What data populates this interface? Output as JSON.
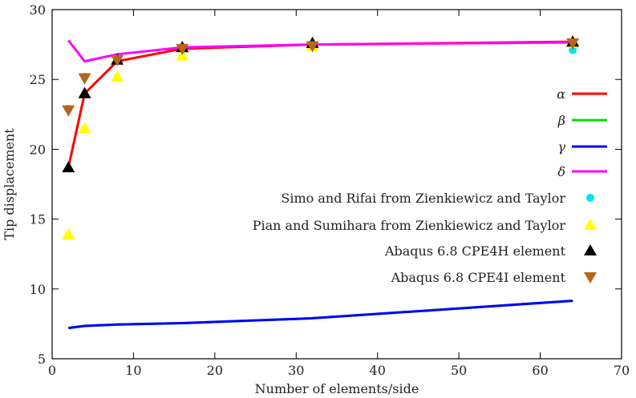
{
  "chart_data": {
    "type": "line",
    "xlabel": "Number of elements/side",
    "ylabel": "Tip displacement",
    "xlim": [
      0,
      70
    ],
    "ylim": [
      5,
      30
    ],
    "xticks": [
      0,
      10,
      20,
      30,
      40,
      50,
      60,
      70
    ],
    "yticks": [
      5,
      10,
      15,
      20,
      25,
      30
    ],
    "grid": false,
    "legend_position": "right",
    "x": [
      2,
      4,
      8,
      16,
      32,
      64
    ],
    "series": [
      {
        "name": "α",
        "style": "line",
        "color": "#ff0000",
        "values": [
          18.7,
          24.0,
          26.3,
          27.2,
          27.5,
          27.7
        ]
      },
      {
        "name": "β",
        "style": "line",
        "color": "#00dd00",
        "values": [
          7.2,
          7.35,
          7.45,
          7.55,
          7.9,
          9.15
        ]
      },
      {
        "name": "γ",
        "style": "line",
        "color": "#0000ff",
        "values": [
          7.2,
          7.35,
          7.45,
          7.55,
          7.9,
          9.15
        ]
      },
      {
        "name": "δ",
        "style": "line",
        "color": "#ff00ff",
        "values": [
          27.8,
          26.3,
          26.8,
          27.3,
          27.5,
          27.65
        ]
      },
      {
        "name": "Simo and Rifai from Zienkiewicz and Taylor",
        "style": "circle",
        "color": "#00e5ee",
        "values": [
          22.9,
          25.2,
          26.5,
          27.3,
          27.5,
          27.1
        ]
      },
      {
        "name": "Pian and Sumihara from Zienkiewicz and Taylor",
        "style": "triangle",
        "color": "#ffff00",
        "values": [
          13.9,
          21.5,
          25.2,
          26.7,
          27.4,
          27.6
        ]
      },
      {
        "name": "Abaqus 6.8 CPE4H element",
        "style": "triangle",
        "color": "#000000",
        "values": [
          18.7,
          24.0,
          26.4,
          27.3,
          27.6,
          27.7
        ]
      },
      {
        "name": "Abaqus 6.8 CPE4I element",
        "style": "invtriangle",
        "color": "#b8651a",
        "values": [
          22.8,
          25.1,
          26.4,
          27.2,
          27.4,
          27.6
        ]
      }
    ]
  }
}
